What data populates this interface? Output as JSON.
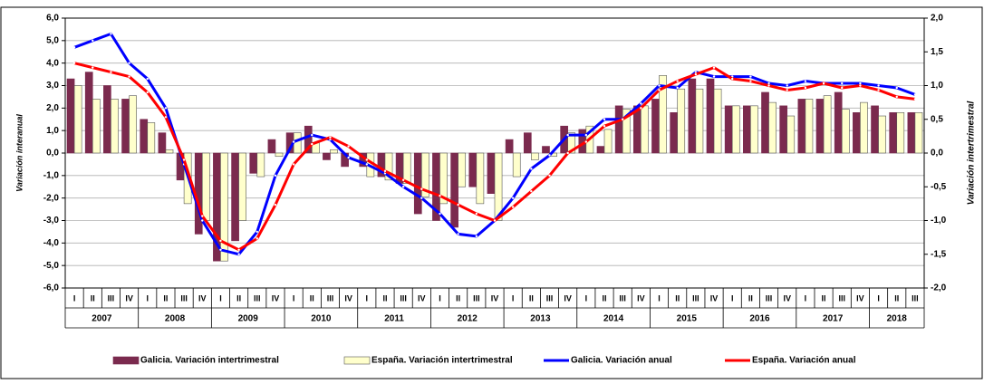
{
  "chart_data": {
    "type": "bar-line",
    "y_label": "Variación interanual",
    "y2_label": "Variación intertrimestral",
    "categories": [
      "I",
      "II",
      "III",
      "IV",
      "I",
      "II",
      "III",
      "IV",
      "I",
      "II",
      "III",
      "IV",
      "I",
      "II",
      "III",
      "IV",
      "I",
      "II",
      "III",
      "IV",
      "I",
      "II",
      "III",
      "IV",
      "I",
      "II",
      "III",
      "IV",
      "I",
      "II",
      "III",
      "IV",
      "I",
      "II",
      "III",
      "IV",
      "I",
      "II",
      "III",
      "IV",
      "I",
      "II",
      "III",
      "IV",
      "I",
      "II",
      "III"
    ],
    "years": [
      "2007",
      "2008",
      "2009",
      "2010",
      "2011",
      "2012",
      "2013",
      "2014",
      "2015",
      "2016",
      "2017",
      "2018"
    ],
    "ylim": [
      -6,
      6
    ],
    "yticks": [
      {
        "value": -6,
        "label": "-6,0"
      },
      {
        "value": -5,
        "label": "-5,0"
      },
      {
        "value": -4,
        "label": "-4,0"
      },
      {
        "value": -3,
        "label": "-3,0"
      },
      {
        "value": -2,
        "label": "-2,0"
      },
      {
        "value": -1,
        "label": "-1,0"
      },
      {
        "value": 0,
        "label": "0,0"
      },
      {
        "value": 1,
        "label": "1,0"
      },
      {
        "value": 2,
        "label": "2,0"
      },
      {
        "value": 3,
        "label": "3,0"
      },
      {
        "value": 4,
        "label": "4,0"
      },
      {
        "value": 5,
        "label": "5,0"
      },
      {
        "value": 6,
        "label": "6,0"
      }
    ],
    "y2lim": [
      -2,
      2
    ],
    "y2ticks": [
      {
        "value": -2,
        "label": "-2,0"
      },
      {
        "value": -1.5,
        "label": "-1,5"
      },
      {
        "value": -1,
        "label": "-1,0"
      },
      {
        "value": -0.5,
        "label": "-0,5"
      },
      {
        "value": 0,
        "label": "0,0"
      },
      {
        "value": 0.5,
        "label": "0,5"
      },
      {
        "value": 1,
        "label": "1,0"
      },
      {
        "value": 1.5,
        "label": "1,5"
      },
      {
        "value": 2,
        "label": "2,0"
      }
    ],
    "grid": true,
    "series": [
      {
        "name": "Galicia. Variación intertrimestral",
        "kind": "bar",
        "axis": "y2",
        "color": "#7b2a4e",
        "values": [
          1.1,
          1.2,
          1.0,
          0.8,
          0.5,
          0.3,
          -0.4,
          -1.2,
          -1.6,
          -1.3,
          -0.3,
          0.2,
          0.3,
          0.4,
          -0.1,
          -0.2,
          -0.2,
          -0.35,
          -0.45,
          -0.9,
          -1.0,
          -1.1,
          -0.5,
          -0.6,
          0.2,
          0.3,
          0.1,
          0.4,
          0.35,
          0.1,
          0.7,
          0.7,
          0.8,
          0.6,
          1.1,
          1.1,
          0.7,
          0.7,
          0.9,
          0.7,
          0.8,
          0.8,
          0.9,
          0.6,
          0.7,
          0.6,
          0.6
        ]
      },
      {
        "name": "España. Variación intertrimestral",
        "kind": "bar",
        "axis": "y2",
        "color": "#ffffcc",
        "values": [
          1.0,
          0.8,
          0.8,
          0.85,
          0.45,
          0.05,
          -0.75,
          -1.0,
          -1.6,
          -1.0,
          -0.35,
          -0.05,
          0.3,
          0.15,
          0.05,
          0.0,
          -0.35,
          -0.4,
          -0.45,
          -0.65,
          -0.75,
          -0.5,
          -0.75,
          -1.0,
          -0.35,
          -0.1,
          -0.05,
          0.3,
          0.4,
          0.35,
          0.65,
          0.7,
          1.15,
          0.95,
          0.95,
          0.95,
          0.7,
          0.7,
          0.75,
          0.55,
          0.8,
          0.85,
          0.65,
          0.75,
          0.55,
          0.6,
          0.6
        ]
      },
      {
        "name": "Galicia. Variación anual",
        "kind": "line",
        "color": "#0000ff",
        "values": [
          4.7,
          5.0,
          5.3,
          4.0,
          3.3,
          2.0,
          -0.5,
          -3.0,
          -4.3,
          -4.5,
          -3.5,
          -1.0,
          0.5,
          0.8,
          0.6,
          -0.2,
          -0.5,
          -0.9,
          -1.5,
          -2.0,
          -2.7,
          -3.6,
          -3.7,
          -3.0,
          -2.0,
          -0.7,
          -0.1,
          0.8,
          0.8,
          1.5,
          1.5,
          2.2,
          3.0,
          2.9,
          3.6,
          3.4,
          3.4,
          3.4,
          3.1,
          3.0,
          3.2,
          3.1,
          3.1,
          3.1,
          3.0,
          2.9,
          2.6
        ]
      },
      {
        "name": "España. Variación anual",
        "kind": "line",
        "color": "#ff0000",
        "values": [
          4.0,
          3.8,
          3.6,
          3.4,
          2.7,
          1.6,
          -0.3,
          -2.8,
          -3.9,
          -4.3,
          -3.8,
          -2.3,
          -0.5,
          0.4,
          0.7,
          0.3,
          -0.3,
          -0.8,
          -1.2,
          -1.6,
          -1.9,
          -2.3,
          -2.7,
          -3.0,
          -2.4,
          -1.7,
          -1.0,
          0.0,
          0.5,
          1.2,
          1.5,
          2.0,
          2.8,
          3.2,
          3.5,
          3.8,
          3.3,
          3.2,
          3.0,
          2.8,
          2.9,
          3.1,
          2.9,
          3.0,
          2.8,
          2.5,
          2.4
        ]
      }
    ]
  }
}
